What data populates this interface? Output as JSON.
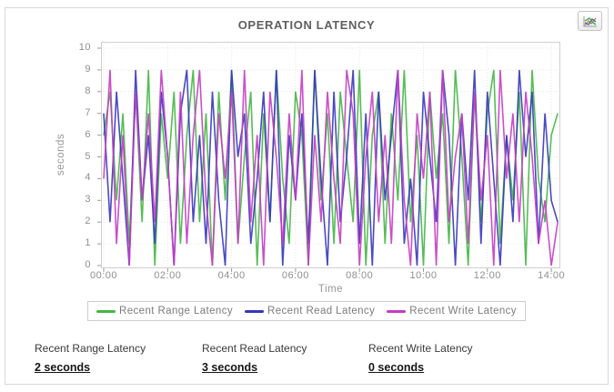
{
  "toolbar": {
    "chart_button_icon": "line-chart-icon"
  },
  "chart_data": {
    "type": "line",
    "title": "OPERATION LATENCY",
    "xlabel": "Time",
    "ylabel": "seconds",
    "ylim": [
      0,
      10
    ],
    "ytick_step": 1,
    "x_unit": "hours",
    "x_start": 0,
    "x_step": 0.2,
    "x_tick_hours": [
      0,
      2,
      4,
      6,
      8,
      10,
      12,
      14
    ],
    "x_tick_labels": [
      "00:00",
      "02:00",
      "04:00",
      "06:00",
      "08:00",
      "10:00",
      "12:00",
      "14:00"
    ],
    "grid": true,
    "legend_position": "bottom",
    "series": [
      {
        "name": "Recent Range Latency",
        "color": "#44b644",
        "values": [
          6,
          8,
          3,
          7,
          1,
          8,
          2,
          9,
          0,
          7,
          4,
          8,
          1,
          6,
          9,
          2,
          7,
          0,
          8,
          3,
          9,
          1,
          5,
          8,
          0,
          7,
          2,
          9,
          4,
          1,
          8,
          6,
          0,
          9,
          3,
          7,
          1,
          8,
          5,
          2,
          9,
          0,
          6,
          8,
          1,
          7,
          3,
          9,
          2,
          6,
          0,
          8,
          4,
          7,
          1,
          9,
          5,
          0,
          8,
          2,
          7,
          9,
          1,
          6,
          3,
          8,
          0,
          9,
          4,
          2,
          6,
          7
        ]
      },
      {
        "name": "Recent Read Latency",
        "color": "#3636bd",
        "values": [
          7,
          2,
          8,
          4,
          0,
          9,
          3,
          6,
          1,
          8,
          5,
          0,
          7,
          9,
          2,
          6,
          1,
          8,
          3,
          0,
          9,
          5,
          7,
          1,
          4,
          8,
          2,
          9,
          0,
          6,
          3,
          7,
          1,
          9,
          4,
          0,
          8,
          2,
          5,
          9,
          1,
          7,
          0,
          8,
          3,
          6,
          9,
          1,
          4,
          0,
          8,
          5,
          2,
          9,
          6,
          0,
          7,
          3,
          9,
          1,
          8,
          4,
          0,
          6,
          2,
          9,
          5,
          8,
          1,
          7,
          3,
          2
        ]
      },
      {
        "name": "Recent Write Latency",
        "color": "#c43cc4",
        "values": [
          4,
          9,
          1,
          6,
          0,
          8,
          3,
          7,
          2,
          9,
          5,
          0,
          8,
          1,
          6,
          9,
          3,
          0,
          7,
          4,
          8,
          1,
          9,
          2,
          6,
          0,
          8,
          5,
          1,
          7,
          3,
          9,
          0,
          6,
          2,
          8,
          4,
          1,
          9,
          7,
          0,
          5,
          8,
          2,
          6,
          1,
          9,
          3,
          0,
          7,
          4,
          8,
          0,
          9,
          2,
          5,
          7,
          1,
          8,
          3,
          6,
          0,
          9,
          4,
          7,
          2,
          8,
          5,
          1,
          3,
          0,
          2
        ]
      }
    ]
  },
  "stats": {
    "items": [
      {
        "label": "Recent Range Latency",
        "value": "2 seconds"
      },
      {
        "label": "Recent Read Latency",
        "value": "3 seconds"
      },
      {
        "label": "Recent Write Latency",
        "value": "0 seconds"
      }
    ]
  }
}
